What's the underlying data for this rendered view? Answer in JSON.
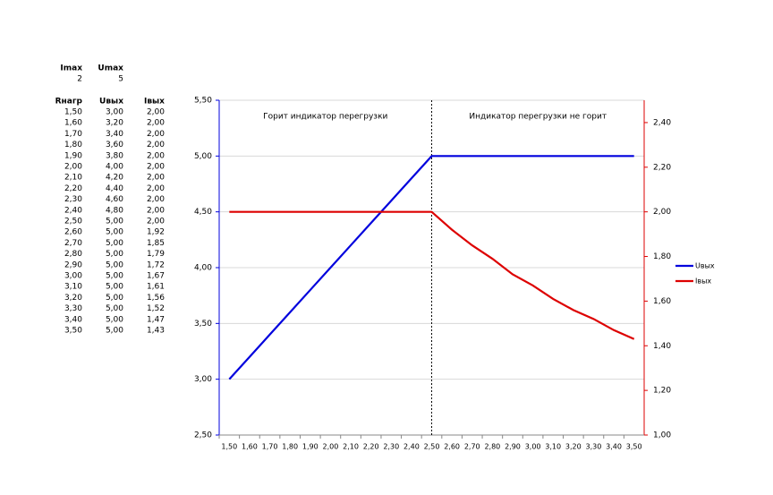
{
  "params": {
    "labels": [
      "Imax",
      "Umax"
    ],
    "values": [
      "2",
      "5"
    ]
  },
  "table": {
    "header": [
      "Rнагр",
      "Uвых",
      "Iвых"
    ],
    "rows": [
      [
        "1,50",
        "3,00",
        "2,00"
      ],
      [
        "1,60",
        "3,20",
        "2,00"
      ],
      [
        "1,70",
        "3,40",
        "2,00"
      ],
      [
        "1,80",
        "3,60",
        "2,00"
      ],
      [
        "1,90",
        "3,80",
        "2,00"
      ],
      [
        "2,00",
        "4,00",
        "2,00"
      ],
      [
        "2,10",
        "4,20",
        "2,00"
      ],
      [
        "2,20",
        "4,40",
        "2,00"
      ],
      [
        "2,30",
        "4,60",
        "2,00"
      ],
      [
        "2,40",
        "4,80",
        "2,00"
      ],
      [
        "2,50",
        "5,00",
        "2,00"
      ],
      [
        "2,60",
        "5,00",
        "1,92"
      ],
      [
        "2,70",
        "5,00",
        "1,85"
      ],
      [
        "2,80",
        "5,00",
        "1,79"
      ],
      [
        "2,90",
        "5,00",
        "1,72"
      ],
      [
        "3,00",
        "5,00",
        "1,67"
      ],
      [
        "3,10",
        "5,00",
        "1,61"
      ],
      [
        "3,20",
        "5,00",
        "1,56"
      ],
      [
        "3,30",
        "5,00",
        "1,52"
      ],
      [
        "3,40",
        "5,00",
        "1,47"
      ],
      [
        "3,50",
        "5,00",
        "1,43"
      ]
    ]
  },
  "chart_data": {
    "type": "line",
    "annotations": [
      "Горит индикатор перегрузки",
      "Индикатор перегрузки не горит"
    ],
    "categories": [
      "1,50",
      "1,60",
      "1,70",
      "1,80",
      "1,90",
      "2,00",
      "2,10",
      "2,20",
      "2,30",
      "2,40",
      "2,50",
      "2,60",
      "2,70",
      "2,80",
      "2,90",
      "3,00",
      "3,10",
      "3,20",
      "3,30",
      "3,40",
      "3,50"
    ],
    "series": [
      {
        "name": "Uвых",
        "color": "#0000dd",
        "values": [
          3.0,
          3.2,
          3.4,
          3.6,
          3.8,
          4.0,
          4.2,
          4.4,
          4.6,
          4.8,
          5.0,
          5.0,
          5.0,
          5.0,
          5.0,
          5.0,
          5.0,
          5.0,
          5.0,
          5.0,
          5.0
        ]
      },
      {
        "name": "Iвых",
        "color": "#dd0000",
        "axis": "y2",
        "values": [
          2.0,
          2.0,
          2.0,
          2.0,
          2.0,
          2.0,
          2.0,
          2.0,
          2.0,
          2.0,
          2.0,
          1.92,
          1.85,
          1.79,
          1.72,
          1.67,
          1.61,
          1.56,
          1.52,
          1.47,
          1.43
        ]
      }
    ],
    "ylim": [
      2.5,
      5.5
    ],
    "yticks": [
      {
        "value": 2.5,
        "label": "2,50"
      },
      {
        "value": 3.0,
        "label": "3,00"
      },
      {
        "value": 3.5,
        "label": "3,50"
      },
      {
        "value": 4.0,
        "label": "4,00"
      },
      {
        "value": 4.5,
        "label": "4,50"
      },
      {
        "value": 5.0,
        "label": "5,00"
      },
      {
        "value": 5.5,
        "label": "5,50"
      }
    ],
    "y2lim": [
      1.0,
      2.5
    ],
    "y2ticks": [
      {
        "value": 1.0,
        "label": "1,00"
      },
      {
        "value": 1.2,
        "label": "1,20"
      },
      {
        "value": 1.4,
        "label": "1,40"
      },
      {
        "value": 1.6,
        "label": "1,60"
      },
      {
        "value": 1.8,
        "label": "1,80"
      },
      {
        "value": 2.0,
        "label": "2,00"
      },
      {
        "value": 2.2,
        "label": "2,20"
      },
      {
        "value": 2.4,
        "label": "2,40"
      }
    ],
    "grid": true,
    "legend": "right"
  }
}
